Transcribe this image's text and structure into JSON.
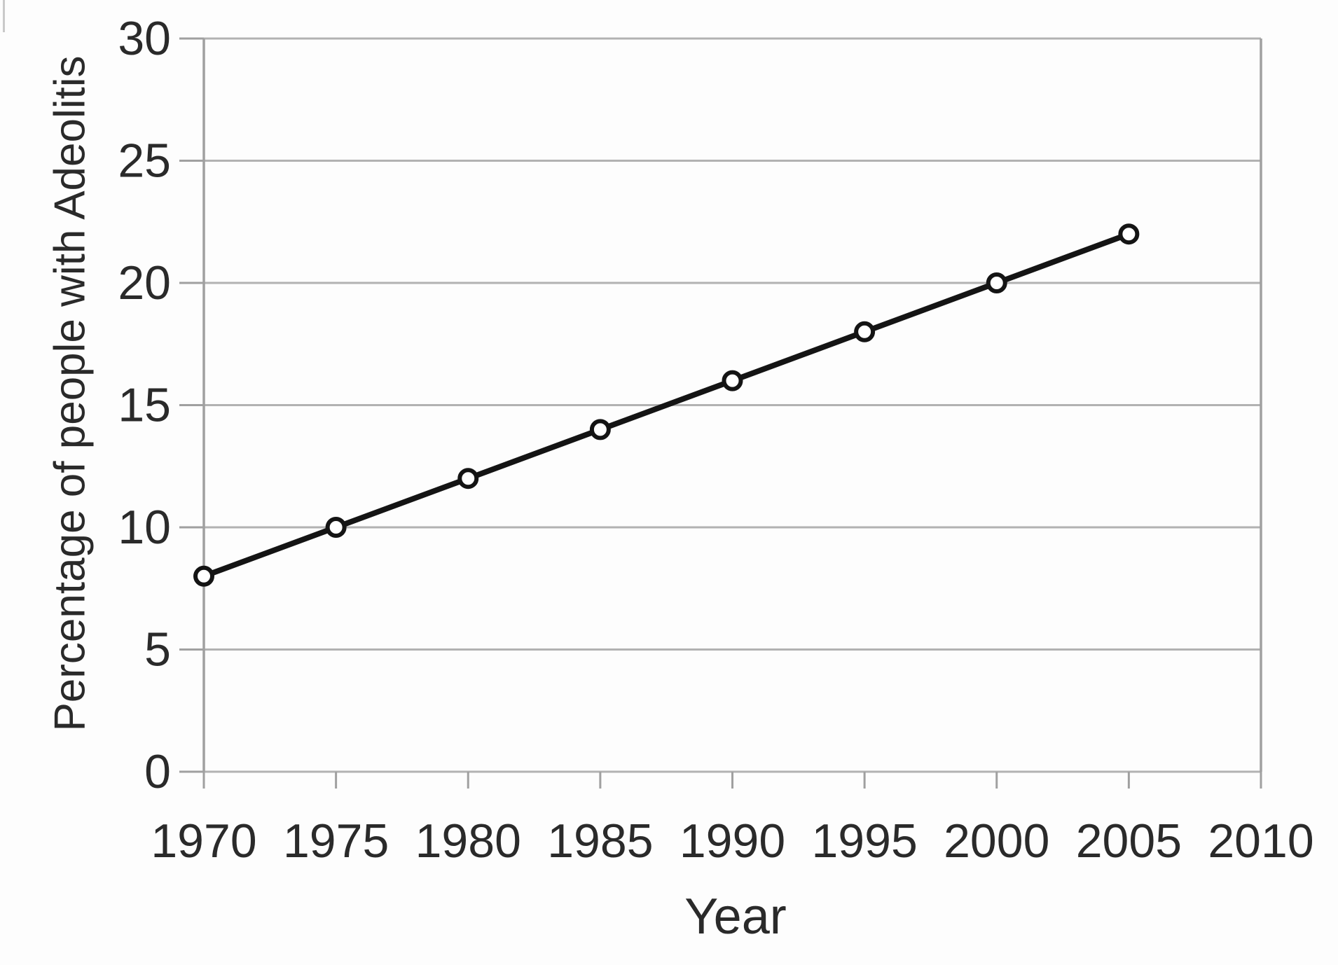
{
  "chart_data": {
    "type": "line",
    "title": "",
    "xlabel": "Year",
    "ylabel": "Percentage of people with Adeolitis",
    "x": [
      1970,
      1975,
      1980,
      1985,
      1990,
      1995,
      2000,
      2005
    ],
    "values": [
      8,
      10,
      12,
      14,
      16,
      18,
      20,
      22
    ],
    "xlim": [
      1970,
      2010
    ],
    "ylim": [
      0,
      30
    ],
    "x_ticks": [
      1970,
      1975,
      1980,
      1985,
      1990,
      1995,
      2000,
      2005,
      2010
    ],
    "y_ticks": [
      0,
      5,
      10,
      15,
      20,
      25,
      30
    ],
    "grid": "horizontal",
    "legend": "none",
    "marker": "open-circle",
    "colors": {
      "line": "#141414",
      "marker_fill": "#ffffff",
      "grid": "#b2b2b2",
      "frame": "#a0a0a0",
      "text": "#2a2a2a",
      "background": "#fdfdfd"
    }
  }
}
